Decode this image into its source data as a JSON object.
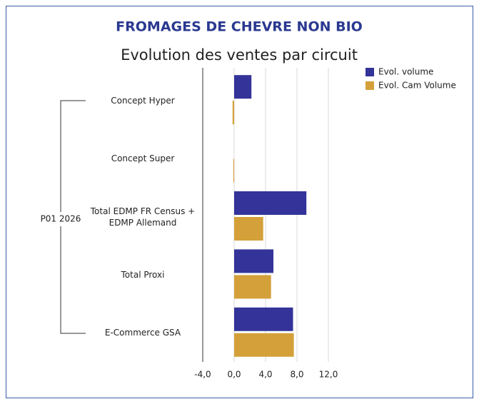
{
  "chart_data": {
    "type": "hbar",
    "title": "FROMAGES DE CHEVRE NON BIO",
    "subtitle": "Evolution des ventes par circuit",
    "group_label": "P01 2026",
    "categories": [
      "Concept Hyper",
      "Concept Super",
      "Total EDMP FR Census + EDMP Allemand",
      "Total Proxi",
      "E-Commerce GSA"
    ],
    "series": [
      {
        "name": "Evol. volume",
        "color": "#33339a",
        "values": [
          2.2,
          null,
          9.2,
          5.0,
          7.5
        ]
      },
      {
        "name": "Evol. Cam Volume",
        "color": "#d4a03a",
        "values": [
          -0.2,
          -0.1,
          3.7,
          4.7,
          7.6
        ]
      }
    ],
    "xlim": [
      -4,
      12
    ],
    "xticks": [
      {
        "value": -4,
        "label": "-4,0"
      },
      {
        "value": 0,
        "label": "0,0"
      },
      {
        "value": 4,
        "label": "4,0"
      },
      {
        "value": 8,
        "label": "8,0"
      },
      {
        "value": 12,
        "label": "12,0"
      }
    ],
    "grid": true
  }
}
